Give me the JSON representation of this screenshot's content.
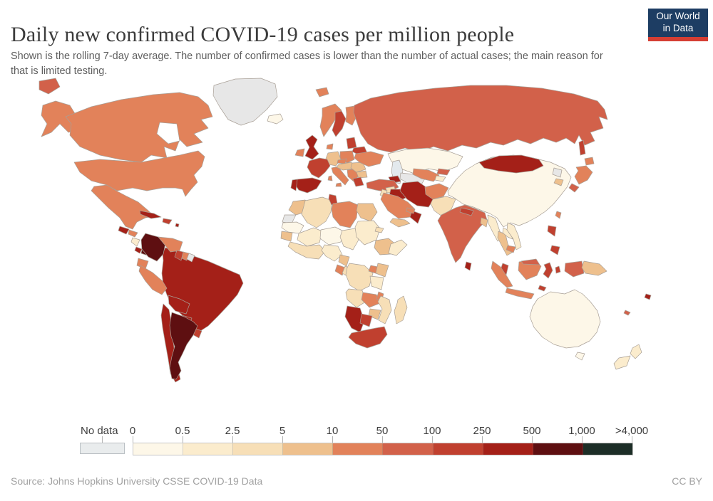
{
  "header": {
    "title": "Daily new confirmed COVID-19 cases per million people",
    "subtitle": "Shown is the rolling 7-day average. The number of confirmed cases is lower than the number of actual cases; the main reason for that is limited testing.",
    "logo": {
      "line1": "Our World",
      "line2": "in Data",
      "bg_color": "#1d3d63",
      "bar_color": "#d53e33"
    }
  },
  "legend": {
    "no_data_label": "No data",
    "no_data_color": "#e7e7e7",
    "tick_labels": [
      "0",
      "0.5",
      "2.5",
      "5",
      "10",
      "50",
      "100",
      "250",
      "500",
      "1,000",
      ">4,000"
    ],
    "bin_colors": [
      "#fdf7e8",
      "#fbeccd",
      "#f7dfb7",
      "#eec08d",
      "#e2825a",
      "#d2614a",
      "#c0402f",
      "#a42018",
      "#5e0f11",
      "#1d2e27"
    ],
    "bin_ranges": [
      "0-0.5",
      "0.5-2.5",
      "2.5-5",
      "5-10",
      "10-50",
      "50-100",
      "100-250",
      "250-500",
      "500-1,000",
      "1,000->4,000"
    ]
  },
  "footer": {
    "source": "Source: Johns Hopkins University CSSE COVID-19 Data",
    "license": "CC BY"
  },
  "map": {
    "ocean_color": "#ffffff",
    "lake_color": "#e3e9ed",
    "border_color": "#a89f96",
    "regions": [
      [
        "chukotka",
        5,
        "55,8 78,4 84,16 68,26 55,20"
      ],
      [
        "alaska",
        4,
        "60,42 78,36 98,42 106,55 98,62 110,76 96,80 84,68 72,80 58,86 66,68 58,56"
      ],
      [
        "canada",
        4,
        "92,58 128,44 170,34 215,27 252,24 278,30 292,42 298,58 282,62 292,74 272,82 284,94 262,100 252,90 246,106 230,100 234,116 212,112 198,122 168,118 140,112 112,100 98,84 100,68"
      ],
      [
        "hudson-bay",
        "ocean",
        "224,66 248,68 252,92 236,96 220,82"
      ],
      [
        "greenland",
        "nd",
        "300,14 330,5 366,4 386,12 389,30 374,48 356,64 338,70 320,62 308,44 299,28"
      ],
      [
        "iceland",
        0,
        "377,57 393,54 397,62 388,68 375,64"
      ],
      [
        "usa",
        4,
        "104,122 140,118 198,122 230,116 252,112 278,106 287,114 283,128 272,140 277,150 268,160 260,170 256,160 246,158 228,158 206,162 186,158 164,162 150,154 128,148 112,136"
      ],
      [
        "mexico",
        4,
        "132,156 150,154 163,162 178,170 194,178 208,190 216,198 204,200 192,206 186,216 176,212 168,200 152,186 138,172 128,162"
      ],
      [
        "cuba",
        7,
        "196,190 216,194 226,199 212,201 197,195"
      ],
      [
        "hispaniola",
        6,
        "229,201 241,203 237,209 228,206"
      ],
      [
        "lesser-antilles",
        7,
        "247,208 251,209 250,213 246,212"
      ],
      [
        "guatemala",
        7,
        "168,212 181,216 177,223 166,218"
      ],
      [
        "honduras",
        4,
        "181,217 193,221 189,227 180,223"
      ],
      [
        "nicaragua",
        1,
        "186,228 196,231 192,240 184,234"
      ],
      [
        "costa-rica",
        7,
        "191,241 199,244 196,250 189,246"
      ],
      [
        "panama",
        8,
        "199,245 212,248 210,254 198,250"
      ],
      [
        "brazil",
        7,
        "232,242 252,249 272,254 292,261 315,271 336,280 341,292 333,308 321,322 306,338 292,352 278,361 265,362 258,352 262,342 250,332 240,321 234,308 229,294 227,278 229,260 228,250"
      ],
      [
        "colombia",
        8,
        "204,222 222,227 232,236 229,251 220,261 208,255 199,244 198,231"
      ],
      [
        "venezuela",
        4,
        "222,227 242,229 256,234 252,246 239,248 231,238"
      ],
      [
        "guyana",
        6,
        "248,246 257,248 254,260 245,255"
      ],
      [
        "suriname",
        4,
        "257,248 265,250 262,260 255,257"
      ],
      [
        "french-guiana",
        "nd",
        "265,250 273,253 269,262 262,258"
      ],
      [
        "ecuador",
        4,
        "194,257 208,261 204,272 192,267"
      ],
      [
        "peru",
        4,
        "197,267 214,277 228,289 234,299 227,308 214,301 204,289 195,275"
      ],
      [
        "bolivia",
        7,
        "236,309 252,314 266,321 261,335 246,331 237,321"
      ],
      [
        "paraguay",
        7,
        "255,337 269,341 265,352 253,348"
      ],
      [
        "uruguay",
        6,
        "272,355 283,359 279,369 270,364"
      ],
      [
        "chile",
        7,
        "229,321 237,329 240,346 242,366 245,390 249,412 253,427 246,431 239,419 236,399 232,377 228,354 226,337"
      ],
      [
        "argentina",
        8,
        "241,333 258,339 271,346 277,352 271,365 262,378 256,391 250,403 254,415 247,427 241,426 238,411 241,395 245,381 240,367 238,351 240,339"
      ],
      [
        "svalbard",
        4,
        "443,20 458,17 461,26 448,30"
      ],
      [
        "uk",
        7,
        "429,91 438,84 445,90 440,100 447,110 438,118 428,113 434,101"
      ],
      [
        "ireland",
        4,
        "417,105 427,103 425,114 414,112"
      ],
      [
        "norway",
        4,
        "452,46 470,40 479,49 470,62 461,76 454,86 449,72 452,57"
      ],
      [
        "sweden",
        6,
        "470,52 479,50 485,61 480,75 471,86 466,77 470,64"
      ],
      [
        "finland",
        4,
        "485,45 497,43 501,56 494,70 485,65 486,54"
      ],
      [
        "denmark",
        4,
        "459,98 467,96 466,104 458,103"
      ],
      [
        "baltics",
        6,
        "486,89 497,87 500,101 488,103"
      ],
      [
        "belarus",
        6,
        "496,102 511,100 515,109 502,111 494,107"
      ],
      [
        "poland",
        4,
        "477,107 494,106 497,118 487,123 477,119"
      ],
      [
        "germany",
        3,
        "460,109 474,107 478,118 471,127 461,125 457,117"
      ],
      [
        "czechia",
        4,
        "474,119 486,117 484,124 473,123"
      ],
      [
        "france",
        6,
        "434,120 448,116 459,118 463,127 456,136 447,144 437,139 431,129"
      ],
      [
        "spain",
        7,
        "417,146 438,144 451,148 444,159 431,165 419,161 413,152"
      ],
      [
        "portugal",
        7,
        "410,147 417,146 415,162 408,158"
      ],
      [
        "italy",
        4,
        "465,130 474,128 481,137 489,147 484,154 475,145 467,137"
      ],
      [
        "sardinia",
        4,
        "461,142 465,141 466,148 460,147"
      ],
      [
        "sicily",
        4,
        "472,152 478,151 479,156 471,156"
      ],
      [
        "austria-hungary",
        3,
        "475,125 493,122 497,131 481,133 472,129"
      ],
      [
        "balkans",
        4,
        "487,133 499,131 504,140 496,149 488,142"
      ],
      [
        "romania",
        3,
        "494,123 509,122 513,132 500,136 492,130"
      ],
      [
        "bulgaria",
        3,
        "500,136 513,134 515,143 503,144"
      ],
      [
        "greece",
        6,
        "495,145 506,143 510,154 499,156"
      ],
      [
        "ukraine",
        4,
        "499,110 520,107 538,112 533,124 517,128 504,122 497,116"
      ],
      [
        "russia",
        5,
        "497,42 520,32 560,24 610,18 660,14 710,14 760,18 805,26 838,36 848,48 852,62 840,58 846,74 828,80 834,92 820,98 812,84 806,96 794,88 780,94 762,88 744,96 726,90 706,98 688,94 668,102 648,98 628,106 608,100 588,108 568,102 548,108 530,104 516,96 506,82 500,64 496,52"
      ],
      [
        "kazakhstan",
        0,
        "544,110 570,104 600,102 630,107 649,114 641,128 622,135 601,131 581,138 562,131 549,121"
      ],
      [
        "caspian-sea",
        "lake",
        "551,121 560,119 565,134 561,152 553,150 549,135"
      ],
      [
        "china",
        0,
        "628,163 640,146 652,134 668,124 690,115 720,112 748,116 772,122 792,131 801,143 796,156 786,169 776,181 765,191 753,199 740,206 728,211 716,207 706,213 697,200 687,194 676,190 664,185 650,181 637,172 629,168"
      ],
      [
        "mongolia",
        7,
        "672,122 700,113 731,112 756,118 762,127 747,134 724,137 699,134 679,130"
      ],
      [
        "turkmenistan",
        "nd",
        "562,137 581,139 596,145 590,155 571,151 561,145"
      ],
      [
        "uzbekistan",
        4,
        "580,131 601,133 616,140 608,149 591,145 579,139"
      ],
      [
        "kyrgyzstan",
        5,
        "615,131 631,133 627,140 613,138"
      ],
      [
        "tajikistan",
        1,
        "612,141 625,143 621,149 610,147"
      ],
      [
        "caucasus",
        7,
        "545,143 558,141 562,149 549,151"
      ],
      [
        "turkey",
        5,
        "514,151 532,146 553,148 559,157 545,164 527,161 515,158"
      ],
      [
        "syria",
        2,
        "541,158 553,156 555,164 543,165"
      ],
      [
        "jordan-israel",
        2,
        "536,160 543,162 540,172 533,168"
      ],
      [
        "iraq",
        7,
        "548,160 563,160 569,172 558,177 546,169"
      ],
      [
        "iran",
        7,
        "565,151 586,149 599,158 609,173 601,185 585,183 571,174 561,162"
      ],
      [
        "afghanistan",
        4,
        "596,157 616,152 629,158 622,170 607,174 597,167"
      ],
      [
        "pakistan",
        2,
        "607,174 626,170 639,174 633,188 620,198 609,190 604,180"
      ],
      [
        "saudi-arabia",
        4,
        "538,165 558,170 572,178 582,188 575,199 559,201 544,190 534,174"
      ],
      [
        "yemen",
        3,
        "551,201 568,203 575,208 559,213 547,206"
      ],
      [
        "oman",
        7,
        "578,190 591,195 586,208 575,199"
      ],
      [
        "uae",
        4,
        "571,186 582,188 580,194 570,191"
      ],
      [
        "india",
        5,
        "619,196 639,186 652,182 666,187 680,193 683,203 673,213 663,226 653,241 646,256 639,263 633,250 628,234 621,218 614,204"
      ],
      [
        "nepal",
        6,
        "647,186 664,190 661,197 645,192"
      ],
      [
        "bangladesh",
        3,
        "675,200 684,203 682,213 674,208"
      ],
      [
        "sri-lanka",
        7,
        "654,262 661,264 659,274 652,270"
      ],
      [
        "myanmar",
        1,
        "684,196 695,201 700,216 705,229 698,233 691,220 685,208"
      ],
      [
        "thailand",
        3,
        "699,219 709,223 712,236 718,249 711,253 704,240 698,228"
      ],
      [
        "laos",
        1,
        "706,214 715,219 719,230 712,227 705,221"
      ],
      [
        "vietnam",
        1,
        "712,207 721,211 727,225 731,241 724,245 720,230 711,217"
      ],
      [
        "cambodia",
        4,
        "712,239 723,241 720,249 710,245"
      ],
      [
        "north-korea",
        "nd",
        "777,130 788,133 786,143 775,139"
      ],
      [
        "south-korea",
        3,
        "780,145 790,147 787,155 777,151"
      ],
      [
        "sakhalin",
        6,
        "812,94 818,91 821,110 814,112"
      ],
      [
        "japan-hokkaido",
        4,
        "820,117 831,115 833,124 822,126"
      ],
      [
        "japan-honshu",
        4,
        "808,129 822,127 831,136 824,147 812,153 806,142 811,134"
      ],
      [
        "japan-kyushu",
        5,
        "802,152 812,157 806,164 798,158"
      ],
      [
        "taiwan",
        4,
        "781,191 787,193 785,201 779,197"
      ],
      [
        "philippines-luzon",
        6,
        "769,211 780,213 778,226 768,219"
      ],
      [
        "philippines-mindanao",
        6,
        "774,239 785,241 782,252 772,246"
      ],
      [
        "malaysia",
        6,
        "705,264 713,267 710,280 702,273"
      ],
      [
        "sumatra",
        4,
        "691,261 702,269 712,284 719,296 711,298 699,287 689,271"
      ],
      [
        "java",
        4,
        "711,299 731,303 749,307 745,314 725,310 709,305"
      ],
      [
        "borneo",
        4,
        "728,262 748,259 759,268 753,281 738,287 727,274"
      ],
      [
        "borneo-malaysia",
        5,
        "731,261 752,258 757,266 734,265"
      ],
      [
        "sulawesi",
        6,
        "763,266 771,263 775,274 769,285 762,279 766,272"
      ],
      [
        "moluccas",
        6,
        "779,270 784,268 786,276 780,278"
      ],
      [
        "timor",
        6,
        "757,295 766,298 763,303 755,300"
      ],
      [
        "west-papua",
        5,
        "793,264 816,261 819,278 804,283 792,275"
      ],
      [
        "papua-new-guinea",
        3,
        "819,261 841,265 851,275 839,281 821,278 816,270"
      ],
      [
        "fiji",
        7,
        "906,307 913,309 911,315 904,312"
      ],
      [
        "new-caledonia",
        5,
        "877,330 884,333 881,337 875,334"
      ],
      [
        "australia",
        0,
        "754,314 772,304 792,307 806,301 817,307 828,318 838,331 842,346 837,361 827,373 811,381 794,383 777,378 761,368 749,354 743,339 747,325"
      ],
      [
        "tasmania",
        0,
        "810,389 820,391 816,400 807,395"
      ],
      [
        "nz-north-island",
        1,
        "887,383 896,378 900,389 891,398 884,391"
      ],
      [
        "nz-south-island",
        1,
        "868,397 884,394 879,408 864,413 861,405"
      ],
      [
        "morocco",
        3,
        "411,177 428,175 437,184 428,192 415,196 405,189 409,182"
      ],
      [
        "western-sahara",
        "nd",
        "399,196 415,196 409,208 396,206"
      ],
      [
        "mauritania",
        0,
        "397,207 416,206 426,211 420,222 404,220 395,214"
      ],
      [
        "algeria",
        2,
        "428,176 452,171 466,176 464,192 457,205 444,214 431,207 423,195 426,184"
      ],
      [
        "tunisia",
        6,
        "462,167 471,169 473,180 465,182 461,173"
      ],
      [
        "libya",
        4,
        "467,180 490,177 502,182 500,200 491,214 477,211 467,199 465,188"
      ],
      [
        "egypt",
        3,
        "502,180 523,180 529,192 520,205 506,200 500,190"
      ],
      [
        "mali",
        1,
        "419,222 440,214 452,219 448,235 431,240 417,231"
      ],
      [
        "niger",
        0,
        "450,217 470,213 482,219 478,234 461,238 449,229"
      ],
      [
        "chad",
        1,
        "480,218 498,215 503,231 495,245 482,240 477,227"
      ],
      [
        "sudan",
        1,
        "502,205 524,204 533,215 528,231 511,238 500,227 498,213"
      ],
      [
        "eritrea",
        2,
        "528,213 538,215 535,221 526,219"
      ],
      [
        "ethiopia",
        3,
        "527,232 545,229 556,238 548,251 533,252 525,242"
      ],
      [
        "somalia",
        1,
        "548,237 563,231 571,238 556,253 545,250"
      ],
      [
        "senegal",
        3,
        "395,219 410,221 408,233 394,229"
      ],
      [
        "west-africa-coast",
        2,
        "407,234 430,240 448,238 456,247 447,258 430,256 414,248 404,240"
      ],
      [
        "nigeria",
        1,
        "455,238 474,240 480,252 469,261 457,254 451,246"
      ],
      [
        "cameroon",
        3,
        "477,252 490,255 486,268 475,262"
      ],
      [
        "gabon",
        4,
        "473,266 484,270 480,281 470,275"
      ],
      [
        "congo",
        2,
        "484,268 494,272 490,284 480,278"
      ],
      [
        "drc",
        2,
        "490,264 511,267 523,278 518,296 504,303 491,295 485,280 487,270"
      ],
      [
        "uganda",
        4,
        "520,267 530,269 527,278 517,275"
      ],
      [
        "kenya",
        3,
        "530,264 545,267 540,283 527,278"
      ],
      [
        "tanzania",
        1,
        "519,282 538,284 535,301 521,296"
      ],
      [
        "angola",
        2,
        "489,300 508,302 513,318 500,326 487,315 485,305"
      ],
      [
        "zambia",
        4,
        "509,305 528,308 533,320 518,326 507,315"
      ],
      [
        "malawi",
        4,
        "531,304 538,307 535,318 528,314"
      ],
      [
        "mozambique",
        2,
        "534,310 546,315 549,330 540,349 531,344 536,328 530,318"
      ],
      [
        "zimbabwe",
        3,
        "519,328 534,330 530,343 517,338"
      ],
      [
        "namibia",
        7,
        "487,324 505,327 511,345 505,361 493,355 484,339"
      ],
      [
        "botswana",
        6,
        "507,335 522,338 518,353 505,348"
      ],
      [
        "south-africa",
        6,
        "493,362 512,358 527,355 539,353 543,364 533,377 515,383 499,377 489,368"
      ],
      [
        "madagascar",
        2,
        "558,315 566,310 571,326 565,344 556,349 553,331 557,320"
      ]
    ]
  }
}
